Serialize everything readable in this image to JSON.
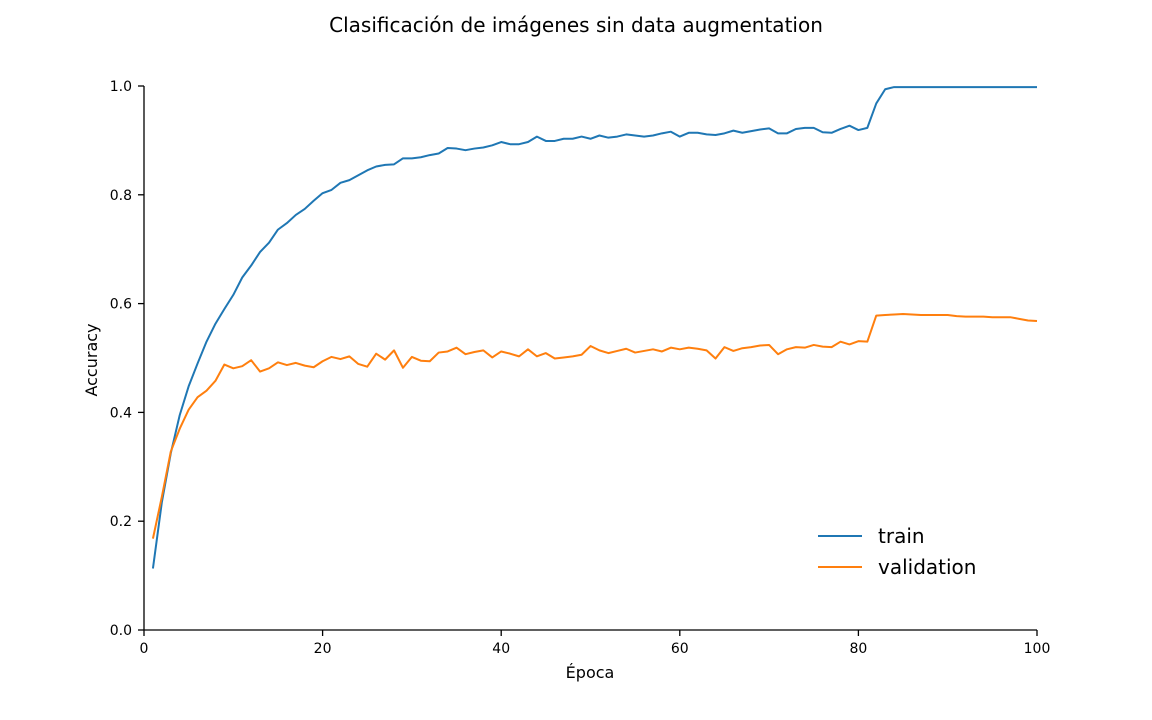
{
  "chart_data": {
    "type": "line",
    "title": "Clasificación de imágenes sin data augmentation",
    "xlabel": "Época",
    "ylabel": "Accuracy",
    "xlim": [
      0,
      100
    ],
    "ylim": [
      0.0,
      1.0
    ],
    "xticks": [
      "0",
      "20",
      "40",
      "60",
      "80",
      "100"
    ],
    "yticks": [
      "0.0",
      "0.2",
      "0.4",
      "0.6",
      "0.8",
      "1.0"
    ],
    "grid": false,
    "legend_position": "lower-right",
    "x": [
      1,
      2,
      3,
      4,
      5,
      6,
      7,
      8,
      9,
      10,
      11,
      12,
      13,
      14,
      15,
      16,
      17,
      18,
      19,
      20,
      21,
      22,
      23,
      24,
      25,
      26,
      27,
      28,
      29,
      30,
      31,
      32,
      33,
      34,
      35,
      36,
      37,
      38,
      39,
      40,
      41,
      42,
      43,
      44,
      45,
      46,
      47,
      48,
      49,
      50,
      51,
      52,
      53,
      54,
      55,
      56,
      57,
      58,
      59,
      60,
      61,
      62,
      63,
      64,
      65,
      66,
      67,
      68,
      69,
      70,
      71,
      72,
      73,
      74,
      75,
      76,
      77,
      78,
      79,
      80,
      81,
      82,
      83,
      84,
      85,
      86,
      87,
      88,
      89,
      90,
      91,
      92,
      93,
      94,
      95,
      96,
      97,
      98,
      99,
      100
    ],
    "series": [
      {
        "name": "train",
        "color": "#1f77b4",
        "values": [
          0.113,
          0.235,
          0.325,
          0.395,
          0.448,
          0.49,
          0.53,
          0.563,
          0.59,
          0.616,
          0.648,
          0.67,
          0.695,
          0.712,
          0.736,
          0.748,
          0.763,
          0.774,
          0.789,
          0.803,
          0.809,
          0.822,
          0.827,
          0.836,
          0.845,
          0.852,
          0.855,
          0.856,
          0.867,
          0.867,
          0.869,
          0.873,
          0.876,
          0.886,
          0.885,
          0.882,
          0.885,
          0.887,
          0.891,
          0.897,
          0.893,
          0.893,
          0.897,
          0.907,
          0.899,
          0.899,
          0.903,
          0.903,
          0.907,
          0.903,
          0.909,
          0.905,
          0.907,
          0.911,
          0.909,
          0.907,
          0.909,
          0.913,
          0.916,
          0.907,
          0.914,
          0.914,
          0.911,
          0.91,
          0.913,
          0.918,
          0.914,
          0.917,
          0.92,
          0.922,
          0.913,
          0.913,
          0.921,
          0.923,
          0.923,
          0.915,
          0.914,
          0.921,
          0.927,
          0.919,
          0.923,
          0.968,
          0.994,
          0.998,
          0.998,
          0.998,
          0.998,
          0.998,
          0.998,
          0.998,
          0.998,
          0.998,
          0.998,
          0.998,
          0.998,
          0.998,
          0.998,
          0.998,
          0.998,
          0.998
        ]
      },
      {
        "name": "validation",
        "color": "#ff7f0e",
        "values": [
          0.168,
          0.245,
          0.328,
          0.37,
          0.405,
          0.428,
          0.44,
          0.458,
          0.488,
          0.481,
          0.485,
          0.496,
          0.475,
          0.481,
          0.492,
          0.487,
          0.491,
          0.486,
          0.483,
          0.494,
          0.502,
          0.498,
          0.503,
          0.489,
          0.484,
          0.508,
          0.497,
          0.514,
          0.482,
          0.502,
          0.495,
          0.494,
          0.51,
          0.512,
          0.519,
          0.507,
          0.511,
          0.514,
          0.501,
          0.512,
          0.508,
          0.503,
          0.516,
          0.503,
          0.509,
          0.499,
          0.501,
          0.503,
          0.506,
          0.522,
          0.514,
          0.509,
          0.513,
          0.517,
          0.51,
          0.513,
          0.516,
          0.512,
          0.519,
          0.516,
          0.519,
          0.517,
          0.514,
          0.499,
          0.52,
          0.513,
          0.518,
          0.52,
          0.523,
          0.524,
          0.507,
          0.516,
          0.52,
          0.519,
          0.524,
          0.521,
          0.52,
          0.53,
          0.525,
          0.531,
          0.53,
          0.578,
          0.579,
          0.58,
          0.581,
          0.58,
          0.579,
          0.579,
          0.579,
          0.579,
          0.577,
          0.576,
          0.576,
          0.576,
          0.575,
          0.575,
          0.575,
          0.572,
          0.569,
          0.568
        ]
      }
    ]
  }
}
